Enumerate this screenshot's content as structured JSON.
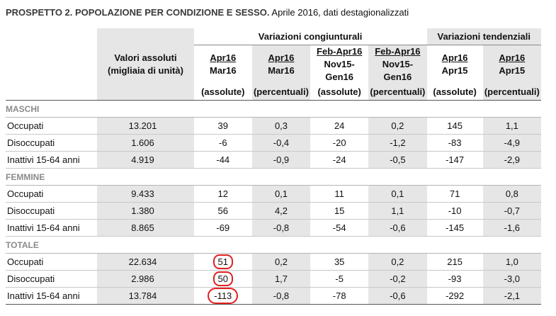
{
  "title": {
    "bold": "PROSPETTO 2. POPOLAZIONE PER CONDIZIONE E SESSO.",
    "rest": "Aprile 2016, dati destagionalizzati"
  },
  "header": {
    "group_congiunturali": "Variazioni congiunturali",
    "group_tendenziali": "Variazioni tendenziali",
    "valori_line1": "Valori assoluti",
    "valori_line2": "(migliaia di unità)",
    "columns": [
      {
        "line1": "Apr16",
        "line2": "Mar16",
        "unit": "(assolute)"
      },
      {
        "line1": "Apr16",
        "line2": "Mar16",
        "unit": "(percentuali)"
      },
      {
        "line1": "Feb-Apr16",
        "line2": "Nov15-Gen16",
        "unit": "(assolute)"
      },
      {
        "line1": "Feb-Apr16",
        "line2": "Nov15-Gen16",
        "unit": "(percentuali)"
      },
      {
        "line1": "Apr16",
        "line2": "Apr15",
        "unit": "(assolute)"
      },
      {
        "line1": "Apr16",
        "line2": "Apr15",
        "unit": "(percentuali)"
      }
    ]
  },
  "sections": [
    {
      "name": "MASCHI",
      "rows": [
        {
          "label": "Occupati",
          "values": [
            "13.201",
            "39",
            "0,3",
            "24",
            "0,2",
            "145",
            "1,1"
          ]
        },
        {
          "label": "Disoccupati",
          "values": [
            "1.606",
            "-6",
            "-0,4",
            "-20",
            "-1,2",
            "-83",
            "-4,9"
          ]
        },
        {
          "label": "Inattivi 15-64 anni",
          "values": [
            "4.919",
            "-44",
            "-0,9",
            "-24",
            "-0,5",
            "-147",
            "-2,9"
          ]
        }
      ]
    },
    {
      "name": "FEMMINE",
      "rows": [
        {
          "label": "Occupati",
          "values": [
            "9.433",
            "12",
            "0,1",
            "11",
            "0,1",
            "71",
            "0,8"
          ]
        },
        {
          "label": "Disoccupati",
          "values": [
            "1.380",
            "56",
            "4,2",
            "15",
            "1,1",
            "-10",
            "-0,7"
          ]
        },
        {
          "label": "Inattivi 15-64 anni",
          "values": [
            "8.865",
            "-69",
            "-0,8",
            "-54",
            "-0,6",
            "-145",
            "-1,6"
          ]
        }
      ]
    },
    {
      "name": "TOTALE",
      "rows": [
        {
          "label": "Occupati",
          "values": [
            "22.634",
            "51",
            "0,2",
            "35",
            "0,2",
            "215",
            "1,0"
          ]
        },
        {
          "label": "Disoccupati",
          "values": [
            "2.986",
            "50",
            "1,7",
            "-5",
            "-0,2",
            "-93",
            "-3,0"
          ]
        },
        {
          "label": "Inattivi 15-64 anni",
          "values": [
            "13.784",
            "-113",
            "-0,8",
            "-78",
            "-0,6",
            "-292",
            "-2,1"
          ]
        }
      ]
    }
  ],
  "colors": {
    "shade": "#e6e6e6",
    "highlight_circle": "#e02020",
    "section_label": "#8a8a8a"
  }
}
